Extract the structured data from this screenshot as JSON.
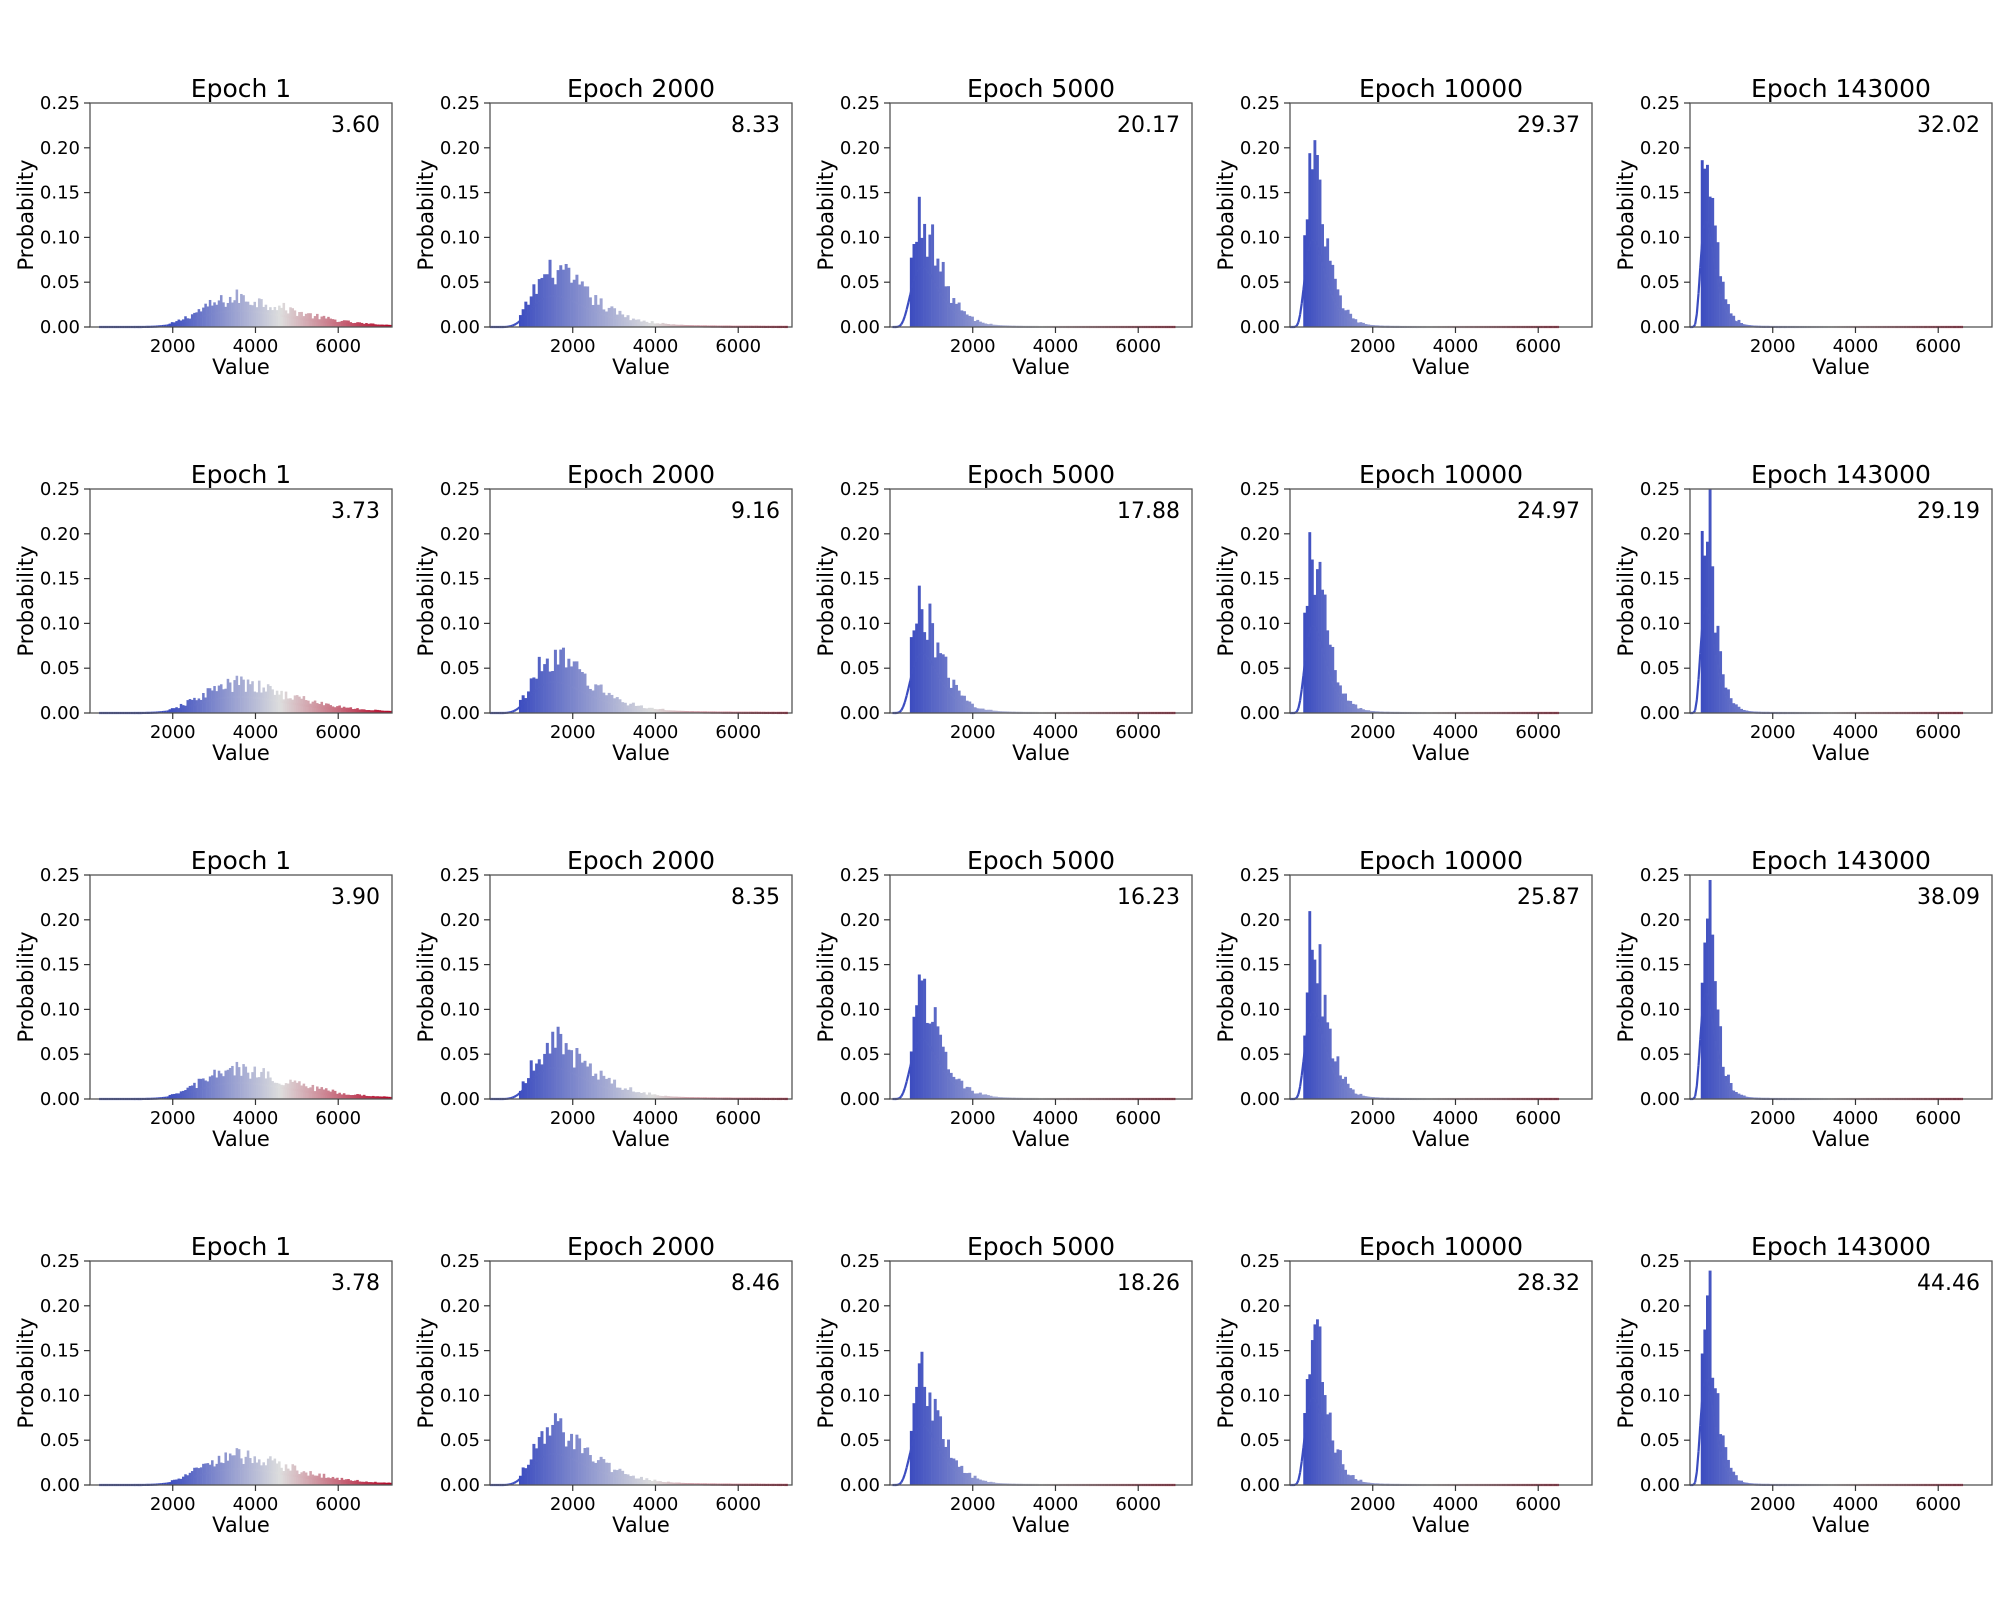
{
  "chart_data": {
    "type": "histogram-grid",
    "rows": 4,
    "cols": 5,
    "xlabel": "Value",
    "ylabel": "Probability",
    "ylim": [
      0,
      0.25
    ],
    "yticks": [
      "0.00",
      "0.05",
      "0.10",
      "0.15",
      "0.20",
      "0.25"
    ],
    "xticks": [
      "2000",
      "4000",
      "6000"
    ],
    "xtick_values": [
      2000,
      4000,
      6000
    ],
    "colormap_low": "#3b4cc0",
    "colormap_mid": "#dddddd",
    "colormap_high": "#b40426",
    "columns": [
      {
        "title": "Epoch 1",
        "xlim": [
          0,
          7300
        ],
        "dist": {
          "lo": 1900,
          "hi": 7300,
          "mode": 3600,
          "sigma": 0.3,
          "peak": 0.031
        }
      },
      {
        "title": "Epoch 2000",
        "xlim": [
          0,
          7300
        ],
        "dist": {
          "lo": 700,
          "hi": 7200,
          "mode": 1550,
          "sigma": 0.42,
          "peak": 0.06
        }
      },
      {
        "title": "Epoch 5000",
        "xlim": [
          0,
          7300
        ],
        "dist": {
          "lo": 480,
          "hi": 6900,
          "mode": 780,
          "sigma": 0.42,
          "peak": 0.115
        }
      },
      {
        "title": "Epoch 10000",
        "xlim": [
          0,
          7300
        ],
        "dist": {
          "lo": 320,
          "hi": 6500,
          "mode": 560,
          "sigma": 0.42,
          "peak": 0.168
        }
      },
      {
        "title": "Epoch 143000",
        "xlim": [
          0,
          7300
        ],
        "dist": {
          "lo": 260,
          "hi": 6600,
          "mode": 390,
          "sigma": 0.42,
          "peak": 0.205
        }
      }
    ],
    "panels": [
      {
        "row": 0,
        "col": 0,
        "title": "Epoch 1",
        "annotation": "3.60"
      },
      {
        "row": 0,
        "col": 1,
        "title": "Epoch 2000",
        "annotation": "8.33"
      },
      {
        "row": 0,
        "col": 2,
        "title": "Epoch 5000",
        "annotation": "20.17"
      },
      {
        "row": 0,
        "col": 3,
        "title": "Epoch 10000",
        "annotation": "29.37"
      },
      {
        "row": 0,
        "col": 4,
        "title": "Epoch 143000",
        "annotation": "32.02"
      },
      {
        "row": 1,
        "col": 0,
        "title": "Epoch 1",
        "annotation": "3.73"
      },
      {
        "row": 1,
        "col": 1,
        "title": "Epoch 2000",
        "annotation": "9.16"
      },
      {
        "row": 1,
        "col": 2,
        "title": "Epoch 5000",
        "annotation": "17.88"
      },
      {
        "row": 1,
        "col": 3,
        "title": "Epoch 10000",
        "annotation": "24.97"
      },
      {
        "row": 1,
        "col": 4,
        "title": "Epoch 143000",
        "annotation": "29.19"
      },
      {
        "row": 2,
        "col": 0,
        "title": "Epoch 1",
        "annotation": "3.90"
      },
      {
        "row": 2,
        "col": 1,
        "title": "Epoch 2000",
        "annotation": "8.35"
      },
      {
        "row": 2,
        "col": 2,
        "title": "Epoch 5000",
        "annotation": "16.23"
      },
      {
        "row": 2,
        "col": 3,
        "title": "Epoch 10000",
        "annotation": "25.87"
      },
      {
        "row": 2,
        "col": 4,
        "title": "Epoch 143000",
        "annotation": "38.09"
      },
      {
        "row": 3,
        "col": 0,
        "title": "Epoch 1",
        "annotation": "3.78"
      },
      {
        "row": 3,
        "col": 1,
        "title": "Epoch 2000",
        "annotation": "8.46"
      },
      {
        "row": 3,
        "col": 2,
        "title": "Epoch 5000",
        "annotation": "18.26"
      },
      {
        "row": 3,
        "col": 3,
        "title": "Epoch 10000",
        "annotation": "28.32"
      },
      {
        "row": 3,
        "col": 4,
        "title": "Epoch 143000",
        "annotation": "44.46"
      }
    ]
  }
}
